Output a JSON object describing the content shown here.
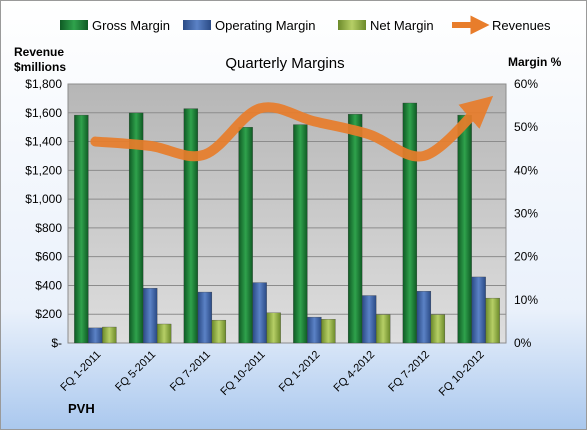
{
  "chart_data": {
    "type": "bar",
    "title": "Quarterly Margins",
    "left_axis_title": [
      "Revenue",
      "$millions"
    ],
    "right_axis_title": "Margin %",
    "footer": "PVH",
    "categories": [
      "FQ 1-2011",
      "FQ 5-2011",
      "FQ 7-2011",
      "FQ 10-2011",
      "FQ 1-2012",
      "FQ 4-2012",
      "FQ 7-2012",
      "FQ 10-2012"
    ],
    "ylim_left": [
      0,
      1800
    ],
    "yticks_left": [
      "$-",
      "$200",
      "$400",
      "$600",
      "$800",
      "$1,000",
      "$1,200",
      "$1,400",
      "$1,600",
      "$1,800"
    ],
    "ylim_right": [
      0,
      60
    ],
    "yticks_right": [
      "0%",
      "10%",
      "20%",
      "30%",
      "40%",
      "50%",
      "60%"
    ],
    "grid": true,
    "legend_position": "top",
    "series": [
      {
        "name": "Gross Margin",
        "axis": "right",
        "color": "#1f8a3c",
        "values": [
          52.8,
          53.3,
          54.3,
          50.0,
          50.6,
          53.0,
          55.6,
          52.8
        ]
      },
      {
        "name": "Operating Margin",
        "axis": "right",
        "color": "#3d63a8",
        "values": [
          3.5,
          12.7,
          11.8,
          14.0,
          6.0,
          11.0,
          12.0,
          15.3
        ]
      },
      {
        "name": "Net Margin",
        "axis": "right",
        "color": "#8fab3f",
        "values": [
          3.7,
          4.4,
          5.3,
          7.0,
          5.5,
          6.6,
          6.6,
          10.4
        ]
      },
      {
        "name": "Revenues",
        "axis": "left",
        "color": "#e87d2b",
        "values": [
          1400,
          1370,
          1310,
          1630,
          1540,
          1450,
          1300,
          1630
        ]
      }
    ]
  }
}
